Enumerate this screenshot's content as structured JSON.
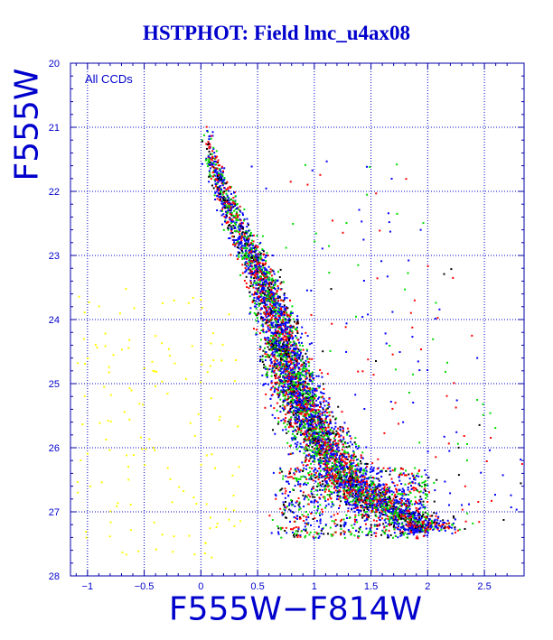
{
  "chart_data": {
    "type": "scatter",
    "title": "HSTPHOT: Field lmc_u4ax08",
    "xlabel": "F555W−F814W",
    "ylabel": "F555W",
    "annotation": "All CCDs",
    "xlim": [
      -1.15,
      2.85
    ],
    "ylim": [
      28,
      20
    ],
    "y_inverted": true,
    "grid": true,
    "grid_style": "dotted",
    "xticks": [
      -1,
      -0.5,
      0,
      0.5,
      1,
      1.5,
      2,
      2.5
    ],
    "xtick_labels": [
      "−1",
      "−0.5",
      "0",
      "0.5",
      "1",
      "1.5",
      "2",
      "2.5"
    ],
    "yticks": [
      20,
      21,
      22,
      23,
      24,
      25,
      26,
      27,
      28
    ],
    "ytick_labels": [
      "20",
      "21",
      "22",
      "23",
      "24",
      "25",
      "26",
      "27",
      "28"
    ],
    "colors": {
      "text": "#0000cc",
      "axes": "#0000aa",
      "grid": "#0000cc",
      "series": [
        "#0000ff",
        "#ff0000",
        "#00dd00",
        "#000000",
        "#ffff00"
      ]
    },
    "features": {
      "main_sequence_ridge": [
        [
          0.05,
          21.2
        ],
        [
          0.15,
          21.8
        ],
        [
          0.3,
          22.5
        ],
        [
          0.5,
          23.2
        ],
        [
          0.65,
          23.9
        ],
        [
          0.75,
          24.6
        ],
        [
          0.9,
          25.4
        ],
        [
          1.1,
          26.0
        ],
        [
          1.3,
          26.5
        ],
        [
          1.6,
          26.9
        ],
        [
          1.95,
          27.15
        ]
      ],
      "red_giant_clump": [
        [
          1.45,
          26.6
        ],
        [
          1.55,
          26.75
        ],
        [
          1.7,
          26.85
        ]
      ],
      "faint_yellow_points": [
        [
          -0.85,
          24.4
        ],
        [
          -0.55,
          25.3
        ],
        [
          -0.3,
          26.3
        ],
        [
          -0.1,
          25.6
        ],
        [
          -0.2,
          26.6
        ],
        [
          -0.6,
          26.1
        ],
        [
          -0.75,
          26.9
        ],
        [
          0.1,
          24.2
        ],
        [
          -0.9,
          25.6
        ],
        [
          -0.4,
          24.8
        ]
      ]
    }
  }
}
